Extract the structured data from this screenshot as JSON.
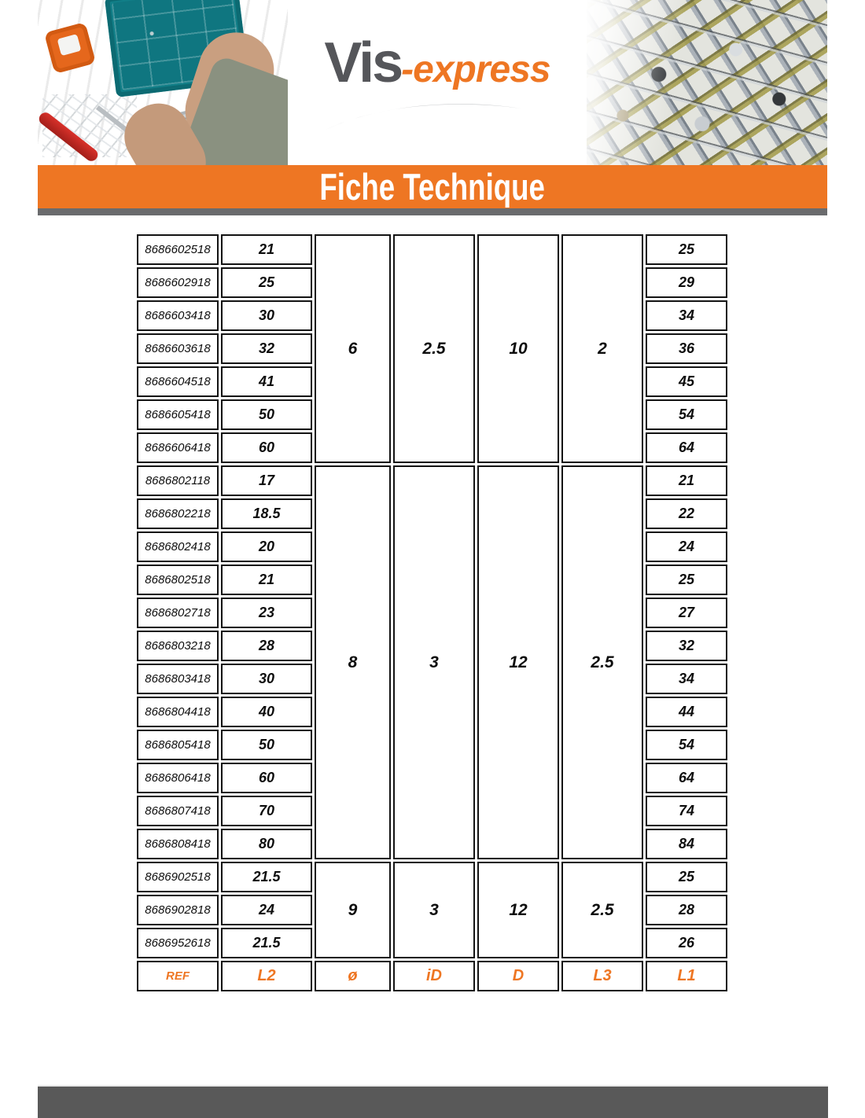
{
  "brand": {
    "logo_vis": "Vis",
    "logo_express": "-express"
  },
  "banner": {
    "title": "Fiche Technique"
  },
  "colors": {
    "accent_orange": "#EE7623",
    "logo_gray": "#55565A",
    "swoosh_gray": "#C8CACC",
    "banner_shadow_gray": "#6A6B6D",
    "bottom_bar_gray": "#595959",
    "table_border": "#131313"
  },
  "table": {
    "footer_labels": [
      "REF",
      "L2",
      "ø",
      "iD",
      "D",
      "L3",
      "L1"
    ],
    "groups": [
      {
        "merged": {
          "dia": "6",
          "id": "2.5",
          "d": "10",
          "l3": "2"
        },
        "rows": [
          {
            "ref": "8686602518",
            "l2": "21",
            "l1": "25"
          },
          {
            "ref": "8686602918",
            "l2": "25",
            "l1": "29"
          },
          {
            "ref": "8686603418",
            "l2": "30",
            "l1": "34"
          },
          {
            "ref": "8686603618",
            "l2": "32",
            "l1": "36"
          },
          {
            "ref": "8686604518",
            "l2": "41",
            "l1": "45"
          },
          {
            "ref": "8686605418",
            "l2": "50",
            "l1": "54"
          },
          {
            "ref": "8686606418",
            "l2": "60",
            "l1": "64"
          }
        ]
      },
      {
        "merged": {
          "dia": "8",
          "id": "3",
          "d": "12",
          "l3": "2.5"
        },
        "rows": [
          {
            "ref": "8686802118",
            "l2": "17",
            "l1": "21"
          },
          {
            "ref": "8686802218",
            "l2": "18.5",
            "l1": "22"
          },
          {
            "ref": "8686802418",
            "l2": "20",
            "l1": "24"
          },
          {
            "ref": "8686802518",
            "l2": "21",
            "l1": "25"
          },
          {
            "ref": "8686802718",
            "l2": "23",
            "l1": "27"
          },
          {
            "ref": "8686803218",
            "l2": "28",
            "l1": "32"
          },
          {
            "ref": "8686803418",
            "l2": "30",
            "l1": "34"
          },
          {
            "ref": "8686804418",
            "l2": "40",
            "l1": "44"
          },
          {
            "ref": "8686805418",
            "l2": "50",
            "l1": "54"
          },
          {
            "ref": "8686806418",
            "l2": "60",
            "l1": "64"
          },
          {
            "ref": "8686807418",
            "l2": "70",
            "l1": "74"
          },
          {
            "ref": "8686808418",
            "l2": "80",
            "l1": "84"
          }
        ]
      },
      {
        "merged": {
          "dia": "9",
          "id": "3",
          "d": "12",
          "l3": "2.5"
        },
        "rows": [
          {
            "ref": "8686902518",
            "l2": "21.5",
            "l1": "25"
          },
          {
            "ref": "8686902818",
            "l2": "24",
            "l1": "28"
          },
          {
            "ref": "8686952618",
            "l2": "21.5",
            "l1": "26"
          }
        ]
      }
    ]
  }
}
